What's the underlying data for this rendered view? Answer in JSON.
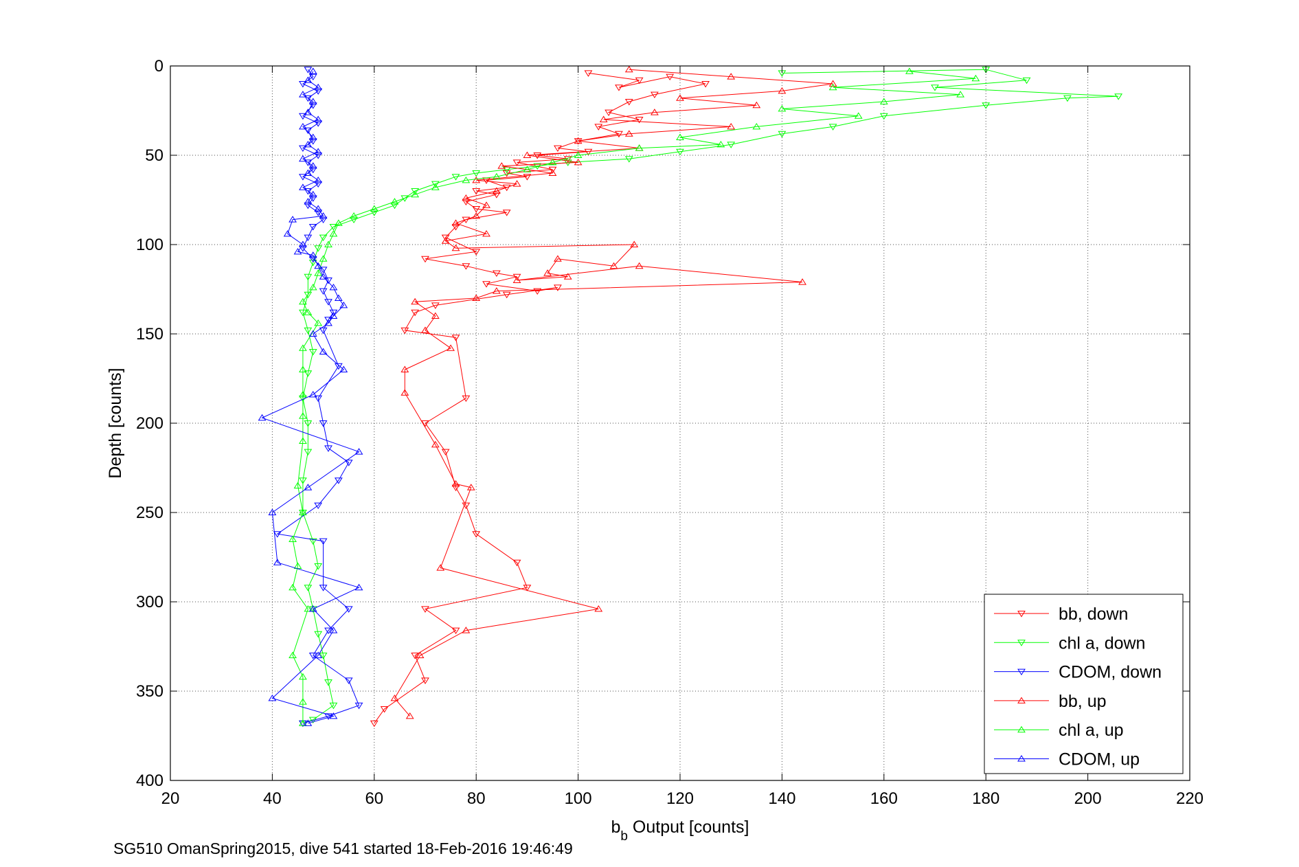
{
  "caption": "SG510 OmanSpring2015, dive 541 started 18-Feb-2016 19:46:49",
  "chart_data": {
    "type": "scatter",
    "xlabel_main": "b",
    "xlabel_sub": "b",
    "xlabel_rest": " Output [counts]",
    "ylabel": "Depth [counts]",
    "xlim": [
      20,
      220
    ],
    "ylim": [
      0,
      400
    ],
    "y_reversed": true,
    "xticks": [
      20,
      40,
      60,
      80,
      100,
      120,
      140,
      160,
      180,
      200,
      220
    ],
    "yticks": [
      0,
      50,
      100,
      150,
      200,
      250,
      300,
      350,
      400
    ],
    "grid": true,
    "legend_position": "bottom-right",
    "series": [
      {
        "name": "bb, down",
        "color": "#ff0000",
        "marker": "triangle-down",
        "line": true,
        "points": [
          [
            102,
            4
          ],
          [
            112,
            8
          ],
          [
            108,
            12
          ],
          [
            118,
            6
          ],
          [
            125,
            10
          ],
          [
            115,
            16
          ],
          [
            110,
            20
          ],
          [
            106,
            26
          ],
          [
            112,
            30
          ],
          [
            104,
            34
          ],
          [
            108,
            38
          ],
          [
            100,
            42
          ],
          [
            96,
            46
          ],
          [
            102,
            48
          ],
          [
            92,
            50
          ],
          [
            98,
            52
          ],
          [
            88,
            54
          ],
          [
            95,
            58
          ],
          [
            86,
            60
          ],
          [
            90,
            62
          ],
          [
            82,
            64
          ],
          [
            86,
            68
          ],
          [
            80,
            70
          ],
          [
            84,
            72
          ],
          [
            78,
            76
          ],
          [
            80,
            80
          ],
          [
            86,
            82
          ],
          [
            78,
            86
          ],
          [
            76,
            90
          ],
          [
            74,
            96
          ],
          [
            80,
            104
          ],
          [
            70,
            108
          ],
          [
            78,
            112
          ],
          [
            84,
            116
          ],
          [
            88,
            118
          ],
          [
            82,
            122
          ],
          [
            92,
            126
          ],
          [
            96,
            124
          ],
          [
            86,
            128
          ],
          [
            72,
            134
          ],
          [
            68,
            138
          ],
          [
            66,
            148
          ],
          [
            76,
            152
          ],
          [
            78,
            186
          ],
          [
            70,
            200
          ],
          [
            74,
            216
          ],
          [
            76,
            236
          ],
          [
            78,
            246
          ],
          [
            80,
            262
          ],
          [
            88,
            278
          ],
          [
            90,
            292
          ],
          [
            70,
            304
          ],
          [
            76,
            316
          ],
          [
            68,
            330
          ],
          [
            70,
            344
          ],
          [
            62,
            360
          ],
          [
            60,
            368
          ]
        ]
      },
      {
        "name": "chl a, down",
        "color": "#00ff00",
        "marker": "triangle-down",
        "line": true,
        "points": [
          [
            140,
            4
          ],
          [
            180,
            2
          ],
          [
            188,
            8
          ],
          [
            170,
            12
          ],
          [
            206,
            17
          ],
          [
            196,
            18
          ],
          [
            180,
            22
          ],
          [
            160,
            28
          ],
          [
            150,
            34
          ],
          [
            140,
            38
          ],
          [
            130,
            44
          ],
          [
            120,
            48
          ],
          [
            110,
            52
          ],
          [
            98,
            54
          ],
          [
            92,
            56
          ],
          [
            86,
            58
          ],
          [
            80,
            60
          ],
          [
            76,
            62
          ],
          [
            72,
            66
          ],
          [
            68,
            70
          ],
          [
            66,
            74
          ],
          [
            64,
            78
          ],
          [
            60,
            82
          ],
          [
            56,
            86
          ],
          [
            52,
            90
          ],
          [
            50,
            96
          ],
          [
            49,
            102
          ],
          [
            48,
            110
          ],
          [
            47,
            118
          ],
          [
            47,
            128
          ],
          [
            46,
            138
          ],
          [
            47,
            148
          ],
          [
            48,
            160
          ],
          [
            47,
            172
          ],
          [
            46,
            186
          ],
          [
            47,
            200
          ],
          [
            47,
            216
          ],
          [
            46,
            232
          ],
          [
            46,
            250
          ],
          [
            48,
            266
          ],
          [
            49,
            280
          ],
          [
            47,
            292
          ],
          [
            48,
            304
          ],
          [
            49,
            318
          ],
          [
            50,
            330
          ],
          [
            51,
            345
          ],
          [
            52,
            358
          ],
          [
            48,
            366
          ],
          [
            46,
            368
          ]
        ]
      },
      {
        "name": "CDOM, down",
        "color": "#0000ff",
        "marker": "triangle-down",
        "line": true,
        "points": [
          [
            47,
            2
          ],
          [
            48,
            6
          ],
          [
            46,
            10
          ],
          [
            49,
            14
          ],
          [
            47,
            18
          ],
          [
            48,
            22
          ],
          [
            46,
            28
          ],
          [
            49,
            32
          ],
          [
            47,
            36
          ],
          [
            48,
            42
          ],
          [
            46,
            46
          ],
          [
            49,
            50
          ],
          [
            47,
            54
          ],
          [
            48,
            58
          ],
          [
            46,
            62
          ],
          [
            49,
            66
          ],
          [
            47,
            70
          ],
          [
            48,
            74
          ],
          [
            47,
            78
          ],
          [
            49,
            82
          ],
          [
            50,
            86
          ],
          [
            48,
            90
          ],
          [
            47,
            96
          ],
          [
            46,
            102
          ],
          [
            48,
            108
          ],
          [
            50,
            114
          ],
          [
            51,
            120
          ],
          [
            50,
            126
          ],
          [
            51,
            132
          ],
          [
            52,
            138
          ],
          [
            51,
            142
          ],
          [
            50,
            148
          ],
          [
            53,
            168
          ],
          [
            49,
            186
          ],
          [
            50,
            200
          ],
          [
            51,
            214
          ],
          [
            55,
            222
          ],
          [
            53,
            232
          ],
          [
            49,
            246
          ],
          [
            41,
            262
          ],
          [
            50,
            266
          ],
          [
            50,
            292
          ],
          [
            55,
            304
          ],
          [
            51,
            316
          ],
          [
            48,
            330
          ],
          [
            55,
            344
          ],
          [
            57,
            358
          ],
          [
            51,
            364
          ],
          [
            46,
            368
          ]
        ]
      },
      {
        "name": "bb, up",
        "color": "#ff0000",
        "marker": "triangle-up",
        "line": true,
        "points": [
          [
            110,
            2
          ],
          [
            130,
            6
          ],
          [
            150,
            10
          ],
          [
            140,
            14
          ],
          [
            120,
            18
          ],
          [
            135,
            22
          ],
          [
            115,
            26
          ],
          [
            105,
            30
          ],
          [
            130,
            34
          ],
          [
            110,
            38
          ],
          [
            100,
            42
          ],
          [
            112,
            46
          ],
          [
            90,
            50
          ],
          [
            100,
            54
          ],
          [
            85,
            56
          ],
          [
            95,
            60
          ],
          [
            80,
            64
          ],
          [
            88,
            66
          ],
          [
            84,
            70
          ],
          [
            78,
            74
          ],
          [
            82,
            78
          ],
          [
            80,
            84
          ],
          [
            76,
            88
          ],
          [
            82,
            94
          ],
          [
            74,
            98
          ],
          [
            76,
            102
          ],
          [
            111,
            100
          ],
          [
            107,
            112
          ],
          [
            96,
            108
          ],
          [
            94,
            116
          ],
          [
            98,
            118
          ],
          [
            88,
            120
          ],
          [
            112,
            112
          ],
          [
            144,
            121
          ],
          [
            84,
            126
          ],
          [
            80,
            130
          ],
          [
            68,
            132
          ],
          [
            72,
            140
          ],
          [
            70,
            148
          ],
          [
            75,
            158
          ],
          [
            66,
            170
          ],
          [
            66,
            183
          ],
          [
            72,
            212
          ],
          [
            76,
            234
          ],
          [
            79,
            236
          ],
          [
            73,
            281
          ],
          [
            104,
            304
          ],
          [
            78,
            316
          ],
          [
            69,
            330
          ],
          [
            64,
            354
          ],
          [
            67,
            364
          ]
        ]
      },
      {
        "name": "chl a, up",
        "color": "#00ff00",
        "marker": "triangle-up",
        "line": true,
        "points": [
          [
            165,
            3
          ],
          [
            178,
            7
          ],
          [
            150,
            12
          ],
          [
            175,
            16
          ],
          [
            160,
            20
          ],
          [
            140,
            24
          ],
          [
            155,
            28
          ],
          [
            135,
            34
          ],
          [
            120,
            40
          ],
          [
            128,
            44
          ],
          [
            112,
            46
          ],
          [
            100,
            50
          ],
          [
            95,
            54
          ],
          [
            90,
            58
          ],
          [
            84,
            62
          ],
          [
            78,
            64
          ],
          [
            72,
            68
          ],
          [
            68,
            72
          ],
          [
            64,
            76
          ],
          [
            60,
            80
          ],
          [
            56,
            84
          ],
          [
            53,
            88
          ],
          [
            52,
            94
          ],
          [
            51,
            100
          ],
          [
            50,
            108
          ],
          [
            49,
            116
          ],
          [
            48,
            124
          ],
          [
            46,
            132
          ],
          [
            47,
            138
          ],
          [
            49,
            144
          ],
          [
            46,
            158
          ],
          [
            46,
            170
          ],
          [
            46,
            184
          ],
          [
            46,
            196
          ],
          [
            46,
            210
          ],
          [
            45,
            235
          ],
          [
            46,
            250
          ],
          [
            44,
            265
          ],
          [
            45,
            280
          ],
          [
            44,
            292
          ],
          [
            47,
            304
          ],
          [
            44,
            330
          ],
          [
            46,
            342
          ],
          [
            46,
            356
          ],
          [
            46,
            368
          ]
        ]
      },
      {
        "name": "CDOM, up",
        "color": "#0000ff",
        "marker": "triangle-up",
        "line": true,
        "points": [
          [
            48,
            3
          ],
          [
            47,
            8
          ],
          [
            49,
            12
          ],
          [
            46,
            16
          ],
          [
            48,
            20
          ],
          [
            47,
            26
          ],
          [
            49,
            30
          ],
          [
            46,
            34
          ],
          [
            48,
            40
          ],
          [
            47,
            44
          ],
          [
            49,
            48
          ],
          [
            46,
            52
          ],
          [
            48,
            56
          ],
          [
            47,
            60
          ],
          [
            49,
            64
          ],
          [
            46,
            68
          ],
          [
            48,
            72
          ],
          [
            47,
            76
          ],
          [
            49,
            80
          ],
          [
            50,
            84
          ],
          [
            44,
            86
          ],
          [
            43,
            94
          ],
          [
            46,
            100
          ],
          [
            45,
            104
          ],
          [
            48,
            106
          ],
          [
            49,
            112
          ],
          [
            50,
            118
          ],
          [
            52,
            124
          ],
          [
            53,
            130
          ],
          [
            54,
            134
          ],
          [
            52,
            140
          ],
          [
            51,
            144
          ],
          [
            48,
            150
          ],
          [
            50,
            160
          ],
          [
            54,
            170
          ],
          [
            48,
            184
          ],
          [
            38,
            197
          ],
          [
            57,
            216
          ],
          [
            47,
            236
          ],
          [
            40,
            250
          ],
          [
            41,
            278
          ],
          [
            57,
            292
          ],
          [
            48,
            304
          ],
          [
            52,
            316
          ],
          [
            49,
            330
          ],
          [
            40,
            354
          ],
          [
            52,
            364
          ],
          [
            47,
            368
          ]
        ]
      }
    ]
  }
}
